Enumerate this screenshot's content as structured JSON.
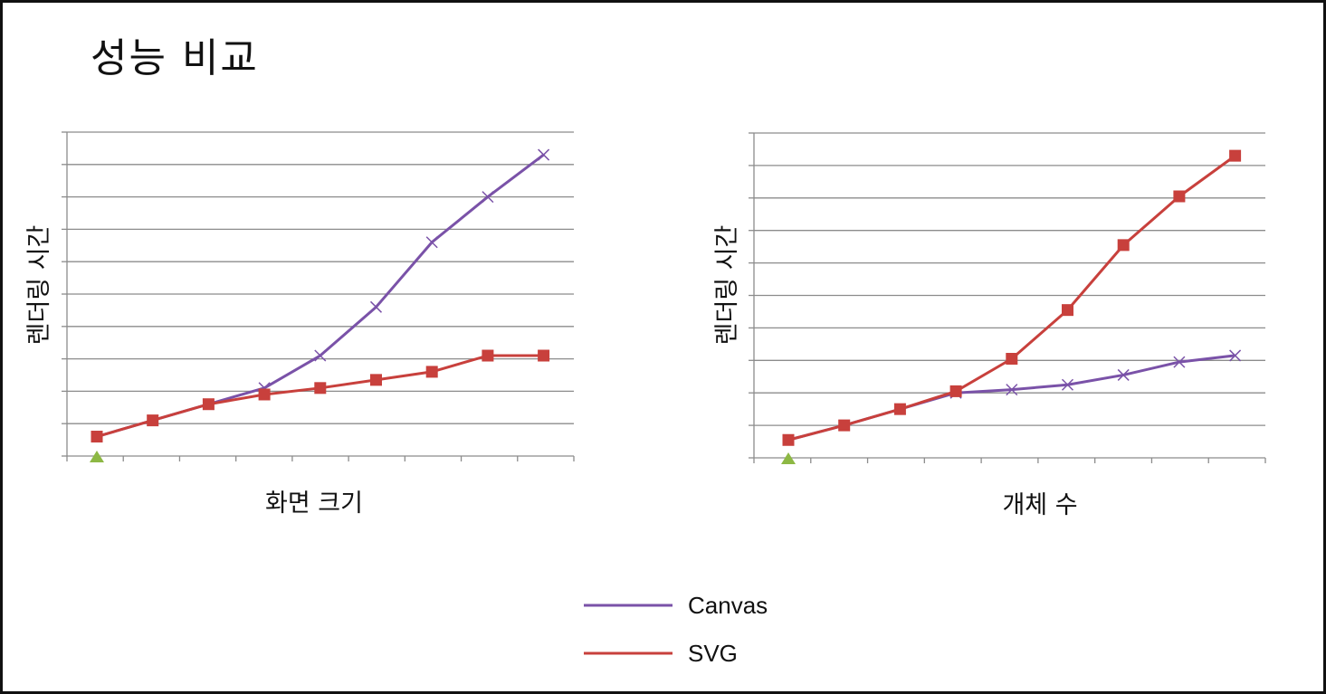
{
  "title": "성능 비교",
  "chart_data": [
    {
      "type": "line",
      "title": "",
      "xlabel": "화면 크기",
      "ylabel": "렌더링 시간",
      "categories": [
        "",
        "",
        "",
        "",
        "",
        "",
        "",
        "",
        ""
      ],
      "ylim": [
        0,
        10
      ],
      "grid": true,
      "series": [
        {
          "name": "Canvas",
          "color": "#7A52A8",
          "marker": "x",
          "values": [
            0.6,
            1.1,
            1.6,
            2.1,
            3.1,
            4.6,
            6.6,
            8.0,
            9.3
          ]
        },
        {
          "name": "SVG",
          "color": "#C8403C",
          "marker": "square",
          "values": [
            0.6,
            1.1,
            1.6,
            1.9,
            2.1,
            2.35,
            2.6,
            3.1,
            3.1
          ]
        }
      ],
      "origin_marker": {
        "color": "#8DB844",
        "shape": "triangle"
      }
    },
    {
      "type": "line",
      "title": "",
      "xlabel": "개체 수",
      "ylabel": "렌더링 시간",
      "categories": [
        "",
        "",
        "",
        "",
        "",
        "",
        "",
        "",
        ""
      ],
      "ylim": [
        0,
        10
      ],
      "grid": true,
      "series": [
        {
          "name": "Canvas",
          "color": "#7A52A8",
          "marker": "x",
          "values": [
            0.55,
            1.0,
            1.5,
            2.0,
            2.1,
            2.25,
            2.55,
            2.95,
            3.15
          ]
        },
        {
          "name": "SVG",
          "color": "#C8403C",
          "marker": "square",
          "values": [
            0.55,
            1.0,
            1.5,
            2.05,
            3.05,
            4.55,
            6.55,
            8.05,
            9.3
          ]
        }
      ],
      "origin_marker": {
        "color": "#8DB844",
        "shape": "triangle"
      }
    }
  ],
  "legend": [
    {
      "label": "Canvas",
      "color": "#7A52A8"
    },
    {
      "label": "SVG",
      "color": "#C8403C"
    }
  ]
}
